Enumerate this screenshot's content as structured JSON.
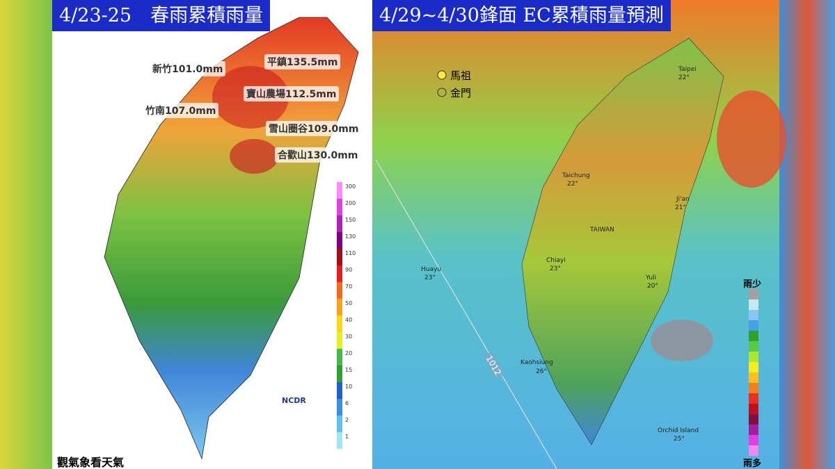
{
  "left_panel": {
    "title": "4/23-25　春雨累積雨量",
    "stations": [
      "新竹101.0mm",
      "平鎮135.5mm",
      "寶山農場112.5mm",
      "竹南107.0mm",
      "雪山圈谷109.0mm",
      "合歡山130.0mm"
    ],
    "legend": [
      "300",
      "200",
      "150",
      "130",
      "110",
      "90",
      "70",
      "50",
      "40",
      "30",
      "20",
      "15",
      "10",
      "6",
      "2",
      "1"
    ],
    "logo": "NCDR"
  },
  "right_panel": {
    "title": "4/29~4/30鋒面 EC累積雨量預測",
    "islands": [
      "馬祖",
      "金門"
    ],
    "cities": [
      "Taipei",
      "22°",
      "Taichung",
      "22°",
      "Ji'an",
      "21°",
      "TAIWAN",
      "Chiayi",
      "23°",
      "Huayu",
      "23°",
      "Yuli",
      "20°",
      "Kaohsiung",
      "26°",
      "Orchid Island",
      "25°"
    ],
    "isobar": "1012",
    "legend_top": "雨少",
    "legend_bottom": "雨多"
  },
  "watermark": "觀氣象看天氣"
}
